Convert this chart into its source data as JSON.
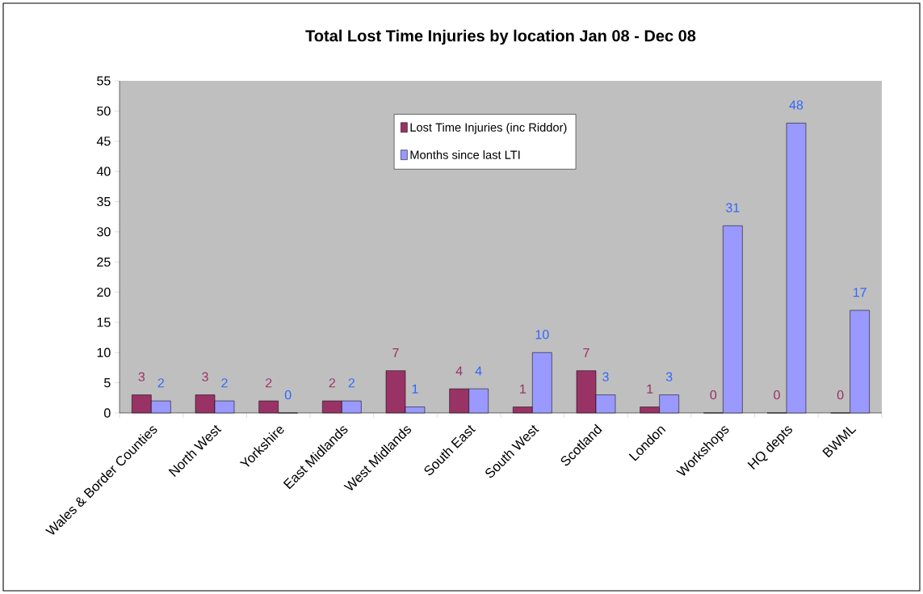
{
  "chart_data": {
    "type": "bar",
    "title": "Total Lost Time Injuries by location Jan 08 - Dec 08",
    "categories": [
      "Wales & Border Counties",
      "North West",
      "Yorkshire",
      "East Midlands",
      "West Midlands",
      "South East",
      "South West",
      "Scotland",
      "London",
      "Workshops",
      "HQ depts",
      "BWML"
    ],
    "series": [
      {
        "name": "Lost Time Injuries (inc Riddor)",
        "color": "#993366",
        "values": [
          3,
          3,
          2,
          2,
          7,
          4,
          1,
          7,
          1,
          0,
          0,
          0
        ]
      },
      {
        "name": "Months since last LTI",
        "color": "#9999ff",
        "values": [
          2,
          2,
          0,
          2,
          1,
          4,
          10,
          3,
          3,
          31,
          48,
          17
        ]
      }
    ],
    "ylim": [
      0,
      55
    ],
    "yticks": [
      0,
      5,
      10,
      15,
      20,
      25,
      30,
      35,
      40,
      45,
      50,
      55
    ],
    "data_labels": true,
    "legend": "top",
    "grid": false
  }
}
